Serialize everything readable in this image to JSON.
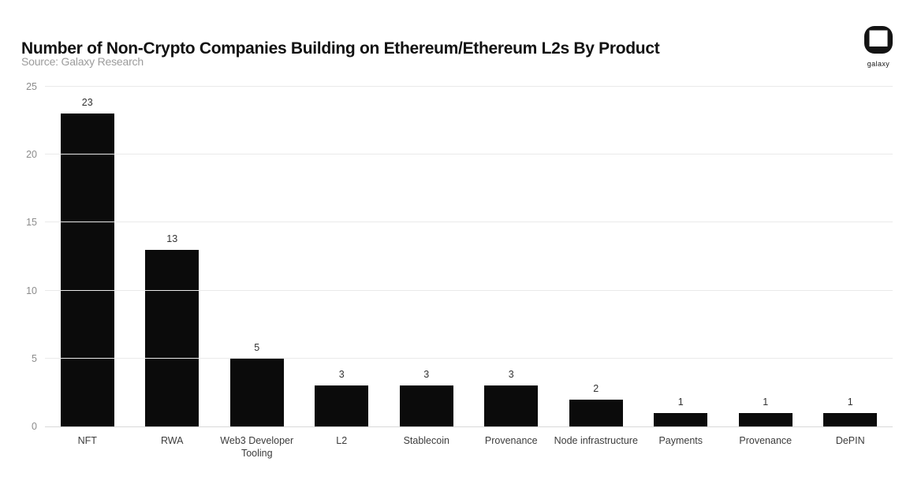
{
  "header": {
    "title": "Number of Non-Crypto Companies Building on Ethereum/Ethereum L2s By Product",
    "source": "Source: Galaxy Research",
    "logo_text": "galaxy"
  },
  "chart_data": {
    "type": "bar",
    "title": "Number of Non-Crypto Companies Building on Ethereum/Ethereum L2s By Product",
    "subtitle": "Source: Galaxy Research",
    "categories": [
      "NFT",
      "RWA",
      "Web3 Developer Tooling",
      "L2",
      "Stablecoin",
      "Provenance",
      "Node infrastructure",
      "Payments",
      "Provenance",
      "DePIN"
    ],
    "values": [
      23,
      13,
      5,
      3,
      3,
      3,
      2,
      1,
      1,
      1
    ],
    "xlabel": "",
    "ylabel": "",
    "ylim": [
      0,
      25
    ],
    "yticks": [
      0,
      5,
      10,
      15,
      20,
      25
    ],
    "grid": "horizontal",
    "legend": "none",
    "colors": {
      "bar": "#0b0b0b",
      "grid": "#eaeaea",
      "baseline": "#d9d9d9",
      "tick_label": "#8c8c8c",
      "value_label": "#333333",
      "category_label": "#3c3c3c",
      "title": "#121212",
      "subtitle": "#9c9c9c"
    }
  }
}
